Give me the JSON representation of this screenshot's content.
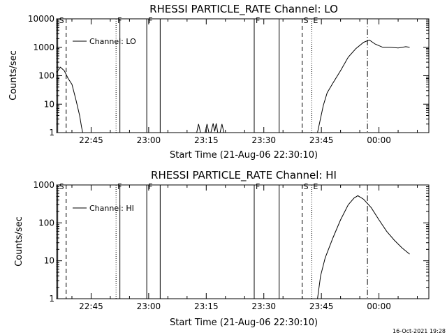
{
  "timestamp": "16-Oct-2021 19:28",
  "chart_data": [
    {
      "type": "line",
      "title": "RHESSI PARTICLE_RATE Channel: LO",
      "xlabel": "Start Time (21-Aug-06 22:30:10)",
      "ylabel": "Counts/sec",
      "x_unit": "minutes since 22:30:10",
      "xlim": [
        6,
        103
      ],
      "ylim": [
        1,
        10000
      ],
      "yscale": "log",
      "grid": false,
      "legend_position": "top-left",
      "x_ticks": [
        {
          "v": 15,
          "label": "22:45"
        },
        {
          "v": 30,
          "label": "23:00"
        },
        {
          "v": 45,
          "label": "23:15"
        },
        {
          "v": 60,
          "label": "23:30"
        },
        {
          "v": 75,
          "label": "23:45"
        },
        {
          "v": 90,
          "label": "00:00"
        }
      ],
      "y_ticks": [
        {
          "v": 1,
          "label": "1"
        },
        {
          "v": 10,
          "label": "10"
        },
        {
          "v": 100,
          "label": "100"
        },
        {
          "v": 1000,
          "label": "1000"
        },
        {
          "v": 10000,
          "label": "10000"
        }
      ],
      "series": [
        {
          "name": "Channel: LO",
          "x": [
            6,
            7,
            8,
            9,
            10,
            11,
            12,
            12.5,
            12.8,
            14.8,
            74,
            75.5,
            76.5,
            78,
            80,
            82,
            84,
            86,
            87.5,
            89,
            91,
            93,
            95,
            97,
            98
          ],
          "y": [
            130,
            200,
            150,
            80,
            50,
            15,
            4,
            1.6,
            1,
            1,
            1,
            9,
            25,
            55,
            150,
            450,
            900,
            1500,
            1800,
            1300,
            1000,
            1000,
            950,
            1050,
            1000
          ]
        }
      ],
      "spikes": [
        {
          "x": [
            42.5,
            43,
            43.5
          ],
          "y": [
            1,
            2,
            1
          ]
        },
        {
          "x": [
            44.7,
            45.2,
            45.7
          ],
          "y": [
            1,
            2,
            1
          ]
        },
        {
          "x": [
            46.2,
            46.8,
            47.2,
            47.6,
            48
          ],
          "y": [
            1,
            2.1,
            1.1,
            2.1,
            1
          ]
        },
        {
          "x": [
            48.6,
            49.1,
            49.6
          ],
          "y": [
            1,
            2,
            1
          ]
        }
      ],
      "markers": [
        {
          "x": 6.3,
          "style": "solid",
          "label": "S"
        },
        {
          "x": 8.5,
          "style": "dash",
          "label": ""
        },
        {
          "x": 21.5,
          "style": "dot",
          "label": "F"
        },
        {
          "x": 22.5,
          "style": "solid",
          "label": ""
        },
        {
          "x": 29.5,
          "style": "solid",
          "label": "F"
        },
        {
          "x": 33,
          "style": "solid",
          "label": ""
        },
        {
          "x": 57.5,
          "style": "solid",
          "label": "F"
        },
        {
          "x": 64,
          "style": "solid",
          "label": ""
        },
        {
          "x": 70,
          "style": "dash",
          "label": "S"
        },
        {
          "x": 72.5,
          "style": "dot",
          "label": "E"
        },
        {
          "x": 87,
          "style": "dashdot",
          "label": ""
        }
      ]
    },
    {
      "type": "line",
      "title": "RHESSI PARTICLE_RATE Channel: HI",
      "xlabel": "Start Time (21-Aug-06 22:30:10)",
      "ylabel": "Counts/sec",
      "x_unit": "minutes since 22:30:10",
      "xlim": [
        6,
        103
      ],
      "ylim": [
        1,
        1000
      ],
      "yscale": "log",
      "grid": false,
      "legend_position": "top-left",
      "x_ticks": [
        {
          "v": 15,
          "label": "22:45"
        },
        {
          "v": 30,
          "label": "23:00"
        },
        {
          "v": 45,
          "label": "23:15"
        },
        {
          "v": 60,
          "label": "23:30"
        },
        {
          "v": 75,
          "label": "23:45"
        },
        {
          "v": 90,
          "label": "00:00"
        }
      ],
      "y_ticks": [
        {
          "v": 1,
          "label": "1"
        },
        {
          "v": 10,
          "label": "10"
        },
        {
          "v": 100,
          "label": "100"
        },
        {
          "v": 1000,
          "label": "1000"
        }
      ],
      "series": [
        {
          "name": "Channel: HI",
          "x": [
            74,
            74.8,
            76,
            78,
            80,
            82,
            83.5,
            84.5,
            86,
            88,
            90,
            92,
            94,
            96,
            98
          ],
          "y": [
            1,
            4,
            12,
            40,
            120,
            300,
            450,
            520,
            420,
            250,
            120,
            60,
            35,
            22,
            15
          ]
        }
      ],
      "spikes": [],
      "markers": [
        {
          "x": 6.3,
          "style": "solid",
          "label": "S"
        },
        {
          "x": 8.5,
          "style": "dash",
          "label": ""
        },
        {
          "x": 21.5,
          "style": "dot",
          "label": "F"
        },
        {
          "x": 22.5,
          "style": "solid",
          "label": ""
        },
        {
          "x": 29.5,
          "style": "solid",
          "label": "F"
        },
        {
          "x": 33,
          "style": "solid",
          "label": ""
        },
        {
          "x": 57.5,
          "style": "solid",
          "label": "F"
        },
        {
          "x": 64,
          "style": "solid",
          "label": ""
        },
        {
          "x": 70,
          "style": "dash",
          "label": "S"
        },
        {
          "x": 72.5,
          "style": "dot",
          "label": "E"
        },
        {
          "x": 87,
          "style": "dashdot",
          "label": ""
        }
      ]
    }
  ]
}
